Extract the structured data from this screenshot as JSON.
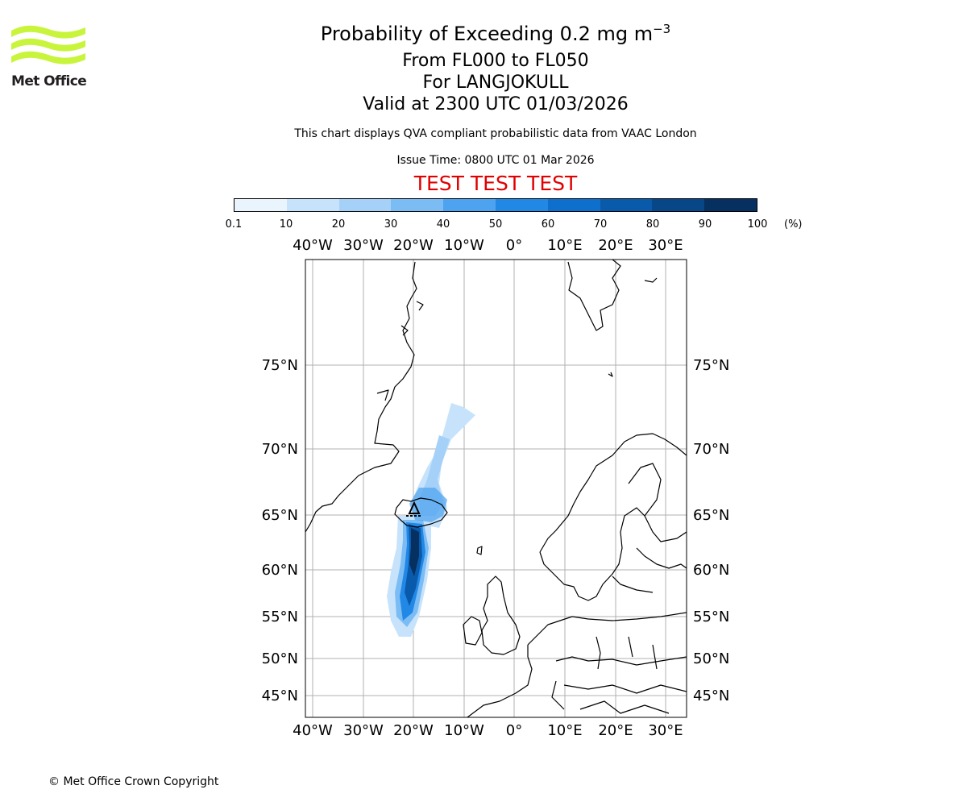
{
  "header": {
    "title": "Probability of Exceeding 0.2 mg m",
    "title_superscript": "−3",
    "level_range": "From FL000 to FL050",
    "volcano": "For LANGJOKULL",
    "valid_time": "Valid at 2300 UTC 01/03/2026",
    "disclaimer": "This chart displays QVA compliant probabilistic data from VAAC London",
    "issue_time": "Issue Time: 0800 UTC 01 Mar 2026",
    "test_banner": "TEST TEST TEST"
  },
  "logo": {
    "text": "Met Office",
    "color": "#c8f53c"
  },
  "colorbar": {
    "ticks": [
      "0.1",
      "10",
      "20",
      "30",
      "40",
      "50",
      "60",
      "70",
      "80",
      "90",
      "100"
    ],
    "unit": "(%)",
    "colors": [
      "#eaf4fd",
      "#c6e3fb",
      "#a5d1f8",
      "#7cbcf5",
      "#4da3f0",
      "#2188e6",
      "#0f6fcc",
      "#0a5aab",
      "#074687",
      "#053060"
    ]
  },
  "map": {
    "lon_labels": [
      "40°W",
      "30°W",
      "20°W",
      "10°W",
      "0°",
      "10°E",
      "20°E",
      "30°E"
    ],
    "lat_labels": [
      "75°N",
      "70°N",
      "65°N",
      "60°N",
      "55°N",
      "50°N",
      "45°N"
    ],
    "lons": [
      -40,
      -30,
      -20,
      -10,
      0,
      10,
      20,
      30
    ],
    "lats": [
      75,
      70,
      65,
      60,
      55,
      50,
      45
    ],
    "volcano_symbol": "volcano-triangle"
  },
  "footer": {
    "copyright": "© Met Office Crown Copyright"
  }
}
